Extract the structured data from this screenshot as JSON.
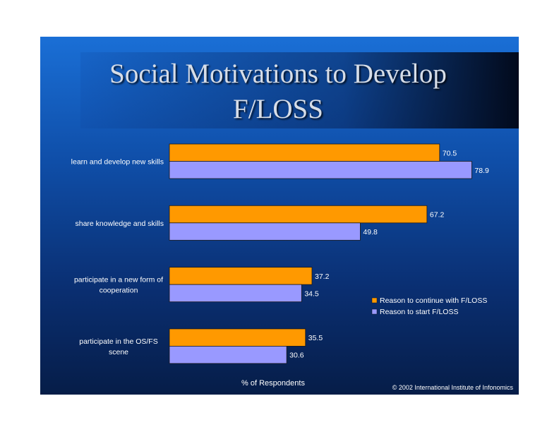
{
  "slide": {
    "title": "Social Motivations to Develop F/LOSS",
    "credit": "© 2002 International Institute of Infonomics"
  },
  "chart_data": {
    "type": "bar",
    "orientation": "horizontal",
    "categories": [
      [
        "learn and develop new skills"
      ],
      [
        "share knowledge and skills"
      ],
      [
        "participate in a new form of",
        "cooperation"
      ],
      [
        "participate in the OS/FS",
        "scene"
      ]
    ],
    "series": [
      {
        "name": "Reason to continue with F/LOSS",
        "values": [
          70.5,
          67.2,
          37.2,
          35.5
        ],
        "color": "#ff9900"
      },
      {
        "name": "Reason to start F/LOSS",
        "values": [
          78.9,
          49.8,
          34.5,
          30.6
        ],
        "color": "#9999ff"
      }
    ],
    "xlabel": "% of Respondents",
    "ylabel": "",
    "xlim": [
      0,
      100
    ],
    "grid": false,
    "legend_position": "right",
    "data_labels": true
  }
}
